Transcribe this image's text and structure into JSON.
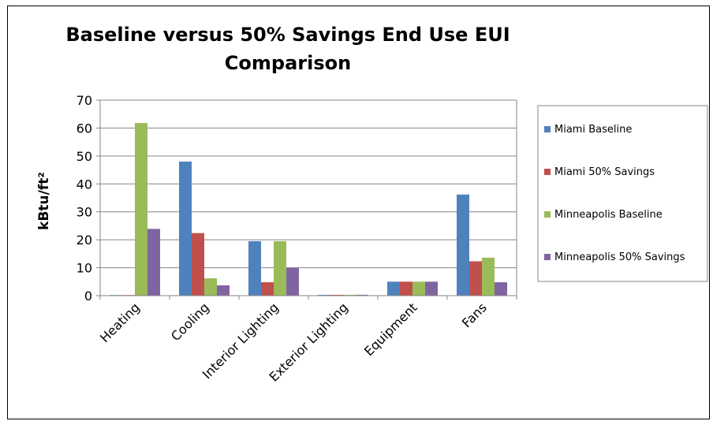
{
  "chart_data": {
    "type": "bar",
    "title_lines": [
      "Baseline versus 50% Savings End Use EUI",
      "Comparison"
    ],
    "ylabel": "kBtu/ft²",
    "xlabel": "",
    "ylim": [
      0,
      70
    ],
    "yticks": [
      0,
      10,
      20,
      30,
      40,
      50,
      60,
      70
    ],
    "grid": true,
    "legend_position": "right",
    "categories": [
      "Heating",
      "Cooling",
      "Interior Lighting",
      "Exterior Lighting",
      "Equipment",
      "Fans"
    ],
    "series": [
      {
        "name": "Miami Baseline",
        "color": "#4F81BD",
        "values": [
          0.2,
          48,
          19.5,
          0.3,
          5,
          36.2
        ]
      },
      {
        "name": "Miami 50% Savings",
        "color": "#C0504D",
        "values": [
          0.2,
          22.4,
          4.8,
          0.3,
          5,
          12.3
        ]
      },
      {
        "name": "Minneapolis Baseline",
        "color": "#9BBB59",
        "values": [
          61.8,
          6.2,
          19.5,
          0.3,
          5,
          13.6
        ]
      },
      {
        "name": "Minneapolis 50% Savings",
        "color": "#8064A2",
        "values": [
          23.9,
          3.7,
          10,
          0.3,
          5,
          4.8
        ]
      }
    ]
  }
}
